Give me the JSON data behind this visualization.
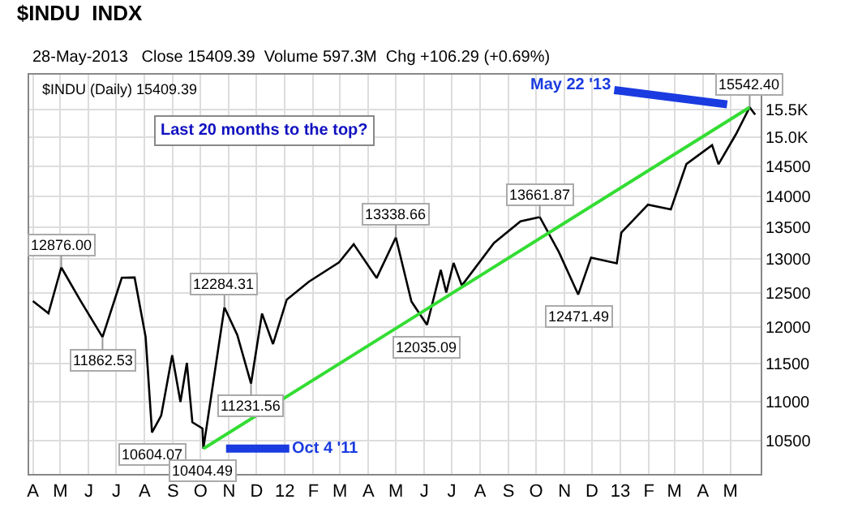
{
  "chart_data": {
    "type": "line",
    "title": "$INDU  INDX",
    "subtitle": "28-May-2013   Close 15409.39  Volume 597.3M  Chg +106.29 (+0.69%)",
    "x": [
      "2011-04-01",
      "2011-04-18",
      "2011-05-02",
      "2011-05-23",
      "2011-06-16",
      "2011-07-07",
      "2011-07-21",
      "2011-08-02",
      "2011-08-09",
      "2011-08-19",
      "2011-08-31",
      "2011-09-09",
      "2011-09-16",
      "2011-09-22",
      "2011-10-03",
      "2011-10-04",
      "2011-10-27",
      "2011-11-10",
      "2011-11-25",
      "2011-12-07",
      "2011-12-19",
      "2012-01-03",
      "2012-01-27",
      "2012-02-29",
      "2012-03-16",
      "2012-04-10",
      "2012-05-01",
      "2012-05-18",
      "2012-06-04",
      "2012-06-19",
      "2012-06-25",
      "2012-07-03",
      "2012-07-12",
      "2012-08-16",
      "2012-09-14",
      "2012-10-05",
      "2012-10-26",
      "2012-11-16",
      "2012-11-30",
      "2012-12-28",
      "2013-01-02",
      "2013-01-31",
      "2013-02-25",
      "2013-03-14",
      "2013-04-11",
      "2013-04-18",
      "2013-05-07",
      "2013-05-22",
      "2013-05-28"
    ],
    "series": [
      {
        "color": "#000000",
        "values": [
          12376,
          12200,
          12876.0,
          12380,
          11862.53,
          12720,
          12724,
          11866,
          10604.07,
          10817,
          11613,
          10992,
          11509,
          10733,
          10655,
          10404.49,
          12284.31,
          11893,
          11231.56,
          12196,
          11766,
          12397,
          12660,
          12952,
          13232,
          12716,
          13338.66,
          12369,
          12035.09,
          12837,
          12502,
          12943,
          12604,
          13250,
          13593,
          13661.87,
          13107,
          12471.49,
          13025,
          12938,
          13412,
          13860,
          13784,
          14539,
          14865,
          14537,
          15056,
          15542.4,
          15409
        ]
      },
      {
        "color": "#33dd33",
        "x": [
          "2011-10-04",
          "2013-05-22"
        ],
        "values": [
          10404.49,
          15542.4
        ]
      }
    ],
    "annotations": [
      {
        "text": "12876.00",
        "x": "2011-05-02",
        "y": 12876.0
      },
      {
        "text": "11862.53",
        "x": "2011-06-16",
        "y": 11862.53
      },
      {
        "text": "10604.07",
        "x": "2011-08-09",
        "y": 10604.07
      },
      {
        "text": "10404.49",
        "x": "2011-10-04",
        "y": 10404.49
      },
      {
        "text": "12284.31",
        "x": "2011-10-27",
        "y": 12284.31
      },
      {
        "text": "11231.56",
        "x": "2011-11-25",
        "y": 11231.56
      },
      {
        "text": "13338.66",
        "x": "2012-05-01",
        "y": 13338.66
      },
      {
        "text": "12035.09",
        "x": "2012-06-04",
        "y": 12035.09
      },
      {
        "text": "13661.87",
        "x": "2012-10-05",
        "y": 13661.87
      },
      {
        "text": "12471.49",
        "x": "2012-11-16",
        "y": 12471.49
      },
      {
        "text": "15542.40",
        "x": "2013-05-22",
        "y": 15542.4
      },
      {
        "text": "Oct 4 '11",
        "x": "2011-10-04",
        "y": 10404.49
      },
      {
        "text": "May 22 '13",
        "x": "2013-05-22",
        "y": 15542.4
      },
      "$INDU (Daily) 15409.39",
      "Last 20 months to the top?"
    ],
    "log": "y",
    "grid": true,
    "xlim": [
      "2011-03-28",
      "2013-06-03"
    ],
    "xticks": [
      {
        "value": "2011-04-01",
        "label": "A"
      },
      {
        "value": "2011-05-01",
        "label": "M"
      },
      {
        "value": "2011-06-01",
        "label": "J"
      },
      {
        "value": "2011-07-01",
        "label": "J"
      },
      {
        "value": "2011-08-01",
        "label": "A"
      },
      {
        "value": "2011-09-01",
        "label": "S"
      },
      {
        "value": "2011-10-01",
        "label": "O"
      },
      {
        "value": "2011-11-01",
        "label": "N"
      },
      {
        "value": "2011-12-01",
        "label": "D"
      },
      {
        "value": "2012-01-01",
        "label": "12"
      },
      {
        "value": "2012-02-01",
        "label": "F"
      },
      {
        "value": "2012-03-01",
        "label": "M"
      },
      {
        "value": "2012-04-01",
        "label": "A"
      },
      {
        "value": "2012-05-01",
        "label": "M"
      },
      {
        "value": "2012-06-01",
        "label": "J"
      },
      {
        "value": "2012-07-01",
        "label": "J"
      },
      {
        "value": "2012-08-01",
        "label": "A"
      },
      {
        "value": "2012-09-01",
        "label": "S"
      },
      {
        "value": "2012-10-01",
        "label": "O"
      },
      {
        "value": "2012-11-01",
        "label": "N"
      },
      {
        "value": "2012-12-01",
        "label": "D"
      },
      {
        "value": "2013-01-01",
        "label": "13"
      },
      {
        "value": "2013-02-01",
        "label": "F"
      },
      {
        "value": "2013-03-01",
        "label": "M"
      },
      {
        "value": "2013-04-01",
        "label": "A"
      },
      {
        "value": "2013-05-01",
        "label": "M"
      }
    ],
    "ylim": [
      10100,
      16150
    ],
    "yticks": [
      10500,
      11000,
      11500,
      12000,
      12500,
      13000,
      13500,
      14000,
      14500,
      {
        "value": 15000,
        "label": "15.0K"
      },
      {
        "value": 15500,
        "label": "15.5K"
      }
    ]
  }
}
